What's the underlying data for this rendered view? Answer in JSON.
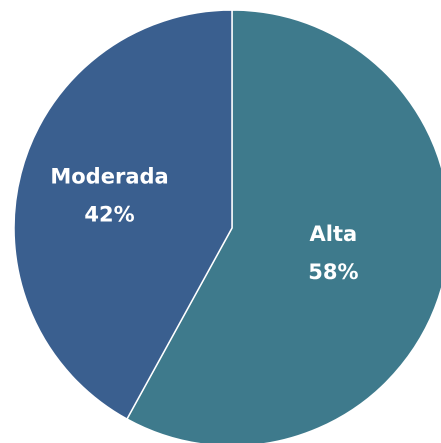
{
  "chart_data": {
    "type": "pie",
    "categories": [
      "Alta",
      "Moderada"
    ],
    "values": [
      58,
      42
    ],
    "value_labels": [
      "58%",
      "42%"
    ],
    "colors": [
      "#3e7a8c",
      "#3a5f8f"
    ]
  }
}
